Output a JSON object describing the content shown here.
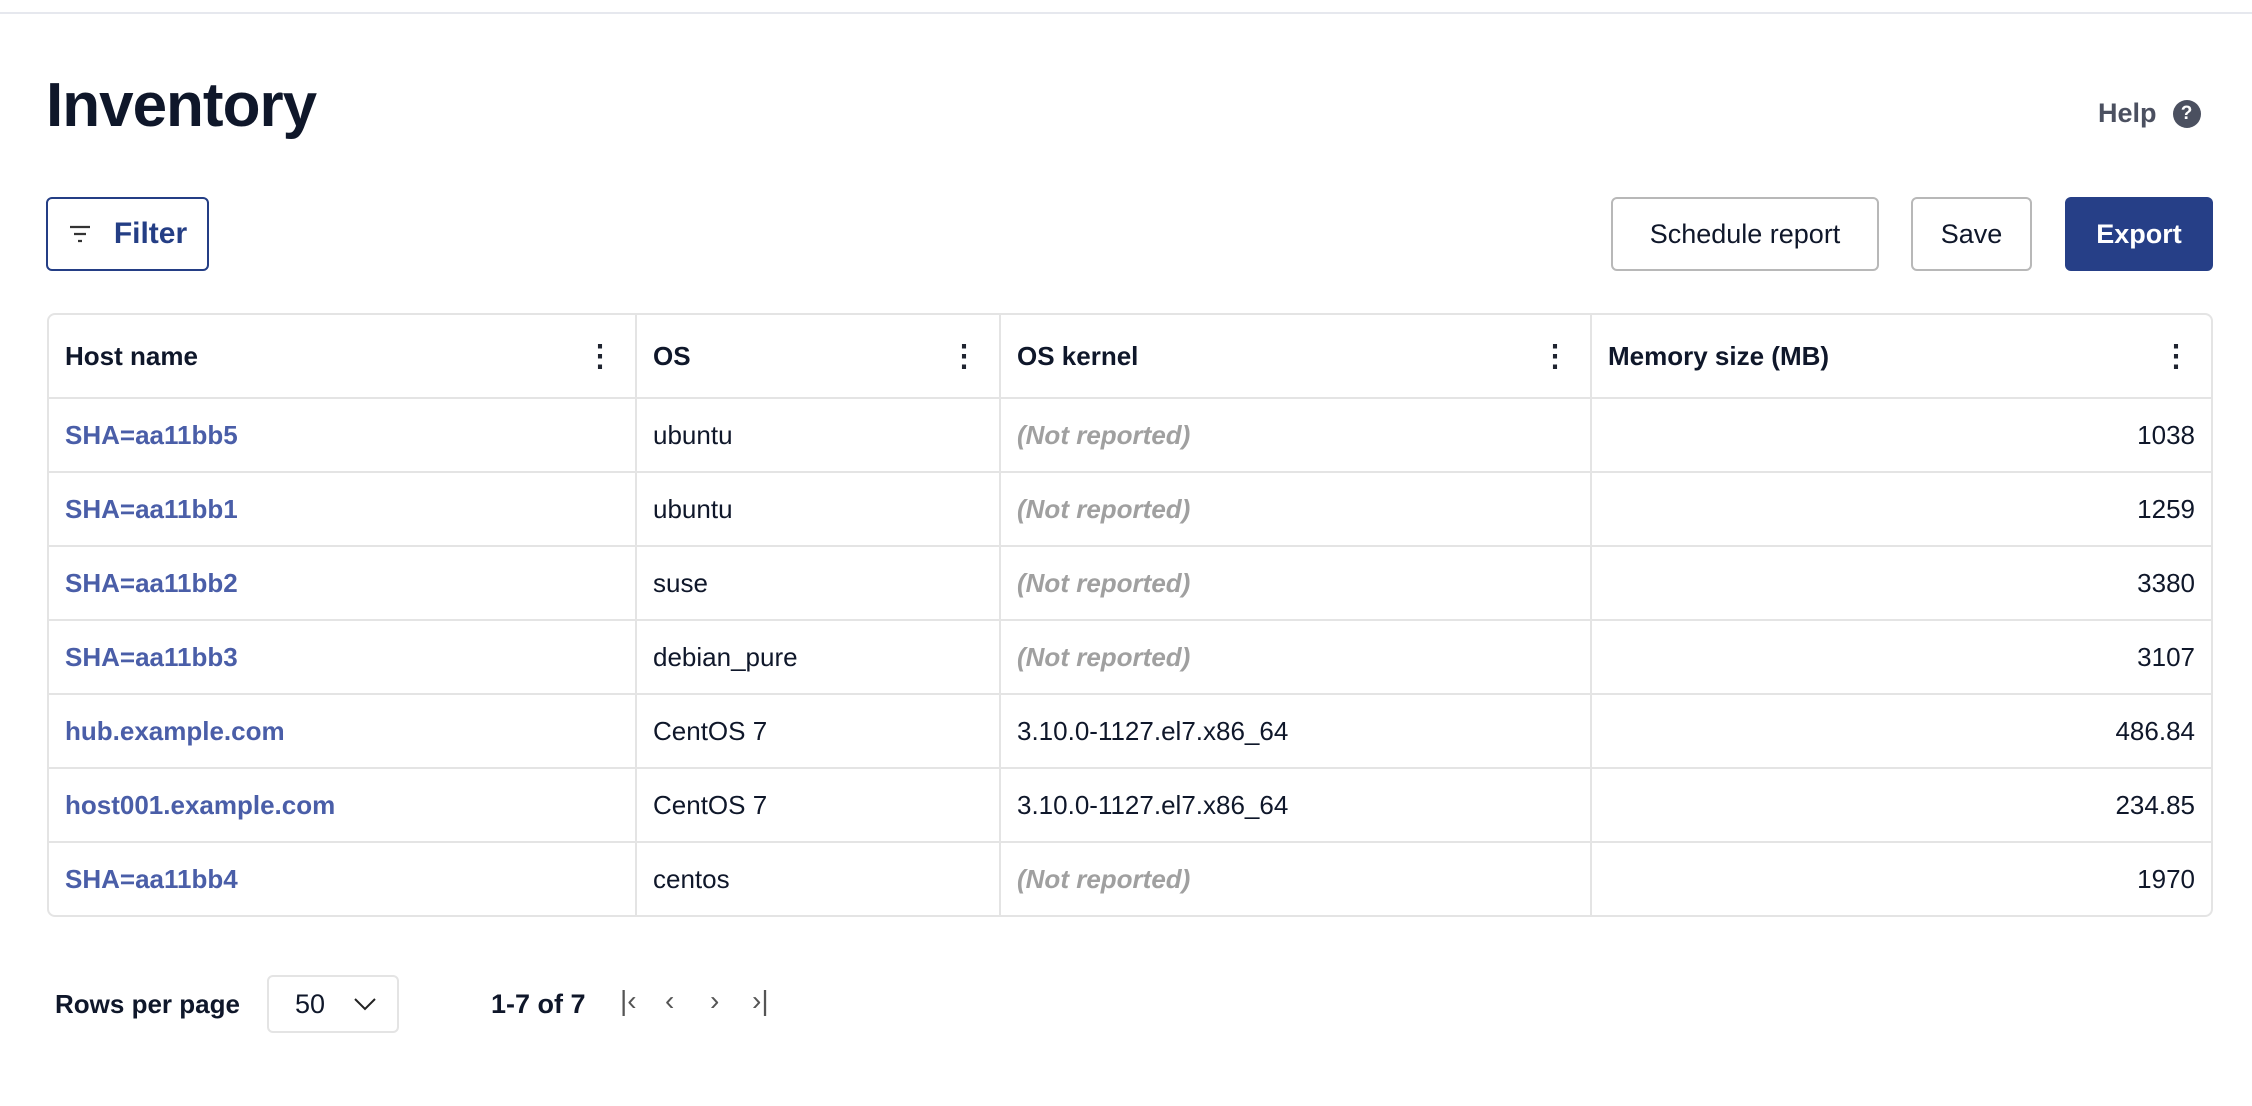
{
  "page": {
    "title": "Inventory",
    "help_label": "Help"
  },
  "toolbar": {
    "filter_label": "Filter",
    "schedule_label": "Schedule report",
    "save_label": "Save",
    "export_label": "Export"
  },
  "colors": {
    "primary": "#263f87",
    "link": "#4a5ea8",
    "muted": "#a0a0a0"
  },
  "table": {
    "columns": [
      "Host name",
      "OS",
      "OS kernel",
      "Memory size (MB)"
    ],
    "rows": [
      {
        "host": "SHA=aa11bb5",
        "os": "ubuntu",
        "kernel": "(Not reported)",
        "memory": "1038",
        "reported": false
      },
      {
        "host": "SHA=aa11bb1",
        "os": "ubuntu",
        "kernel": "(Not reported)",
        "memory": "1259",
        "reported": false
      },
      {
        "host": "SHA=aa11bb2",
        "os": "suse",
        "kernel": "(Not reported)",
        "memory": "3380",
        "reported": false
      },
      {
        "host": "SHA=aa11bb3",
        "os": "debian_pure",
        "kernel": "(Not reported)",
        "memory": "3107",
        "reported": false
      },
      {
        "host": "hub.example.com",
        "os": "CentOS 7",
        "kernel": "3.10.0-1127.el7.x86_64",
        "memory": "486.84",
        "reported": true
      },
      {
        "host": "host001.example.com",
        "os": "CentOS 7",
        "kernel": "3.10.0-1127.el7.x86_64",
        "memory": "234.85",
        "reported": true
      },
      {
        "host": "SHA=aa11bb4",
        "os": "centos",
        "kernel": "(Not reported)",
        "memory": "1970",
        "reported": false
      }
    ]
  },
  "pagination": {
    "rows_per_page_label": "Rows per page",
    "rows_per_page": "50",
    "range": "1-7 of 7"
  }
}
